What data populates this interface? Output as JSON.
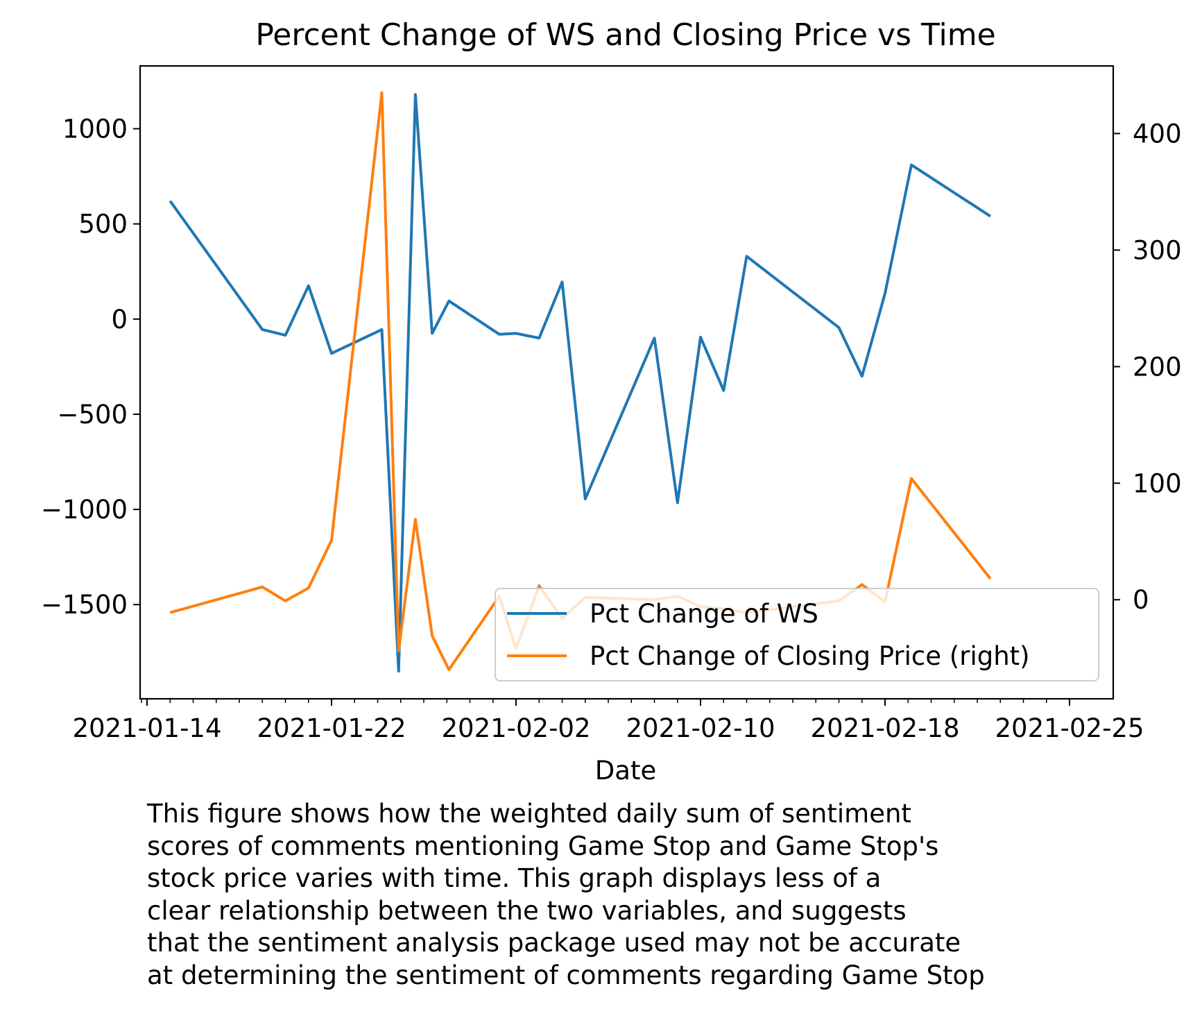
{
  "chart_data": {
    "type": "line",
    "title": "Percent Change of WS and Closing Price vs Time",
    "xlabel": "Date",
    "ylabel": "",
    "y2label": "",
    "x_tick_labels": [
      "2021-01-14",
      "2021-01-22",
      "2021-02-02",
      "2021-02-10",
      "2021-02-18",
      "2021-02-25"
    ],
    "y_left_ticks": [
      1000,
      500,
      0,
      -500,
      -1000,
      -1500
    ],
    "y_left_tick_labels": [
      "1000",
      "500",
      "0",
      "−500",
      "−1000",
      "−1500"
    ],
    "y_right_ticks": [
      400,
      300,
      200,
      100,
      0
    ],
    "y_right_tick_labels": [
      "400",
      "300",
      "200",
      "100",
      "0"
    ],
    "ylim_left": [
      -1995,
      1330
    ],
    "ylim_right": [
      -85,
      458
    ],
    "x": [
      "2021-01-15",
      "2021-01-19",
      "2021-01-20",
      "2021-01-21",
      "2021-01-22",
      "2021-01-25",
      "2021-01-26",
      "2021-01-27",
      "2021-01-28",
      "2021-01-29",
      "2021-02-01",
      "2021-02-02",
      "2021-02-03",
      "2021-02-04",
      "2021-02-05",
      "2021-02-08",
      "2021-02-09",
      "2021-02-10",
      "2021-02-11",
      "2021-02-12",
      "2021-02-16",
      "2021-02-17",
      "2021-02-18",
      "2021-02-19",
      "2021-02-22",
      "2021-02-23",
      "2021-02-24",
      "2021-02-25"
    ],
    "series": [
      {
        "name": "Pct Change of WS",
        "axis": "left",
        "color": "#1f77b4",
        "values": [
          620,
          -55,
          -85,
          175,
          -180,
          -55,
          -1850,
          1180,
          -75,
          95,
          -80,
          -75,
          -100,
          195,
          -945,
          -100,
          -965,
          -95,
          -375,
          330,
          -45,
          -300,
          135,
          810,
          540,
          null,
          null,
          null
        ]
      },
      {
        "name": "Pct Change of Closing Price (right)",
        "axis": "right",
        "color": "#ff7f0e",
        "values": [
          -11,
          11,
          -1,
          10,
          51,
          435,
          -44,
          69,
          -31,
          -60,
          3,
          -42,
          12,
          -16,
          2,
          0,
          3,
          -6,
          -8,
          -11,
          -1,
          13,
          -2,
          104,
          18,
          null,
          null,
          null
        ]
      }
    ],
    "legend": {
      "position": "lower-right",
      "entries": [
        "Pct Change of WS",
        "Pct Change of Closing Price (right)"
      ]
    },
    "grid": false
  },
  "caption_lines": [
    "This figure shows how the weighted daily sum of sentiment",
    "scores of comments mentioning Game Stop and Game Stop's",
    "stock price varies with time. This graph displays less of a",
    "clear relationship between the two variables, and suggests",
    "that the sentiment analysis package used may not be accurate",
    "at determining the sentiment of comments regarding Game Stop"
  ]
}
